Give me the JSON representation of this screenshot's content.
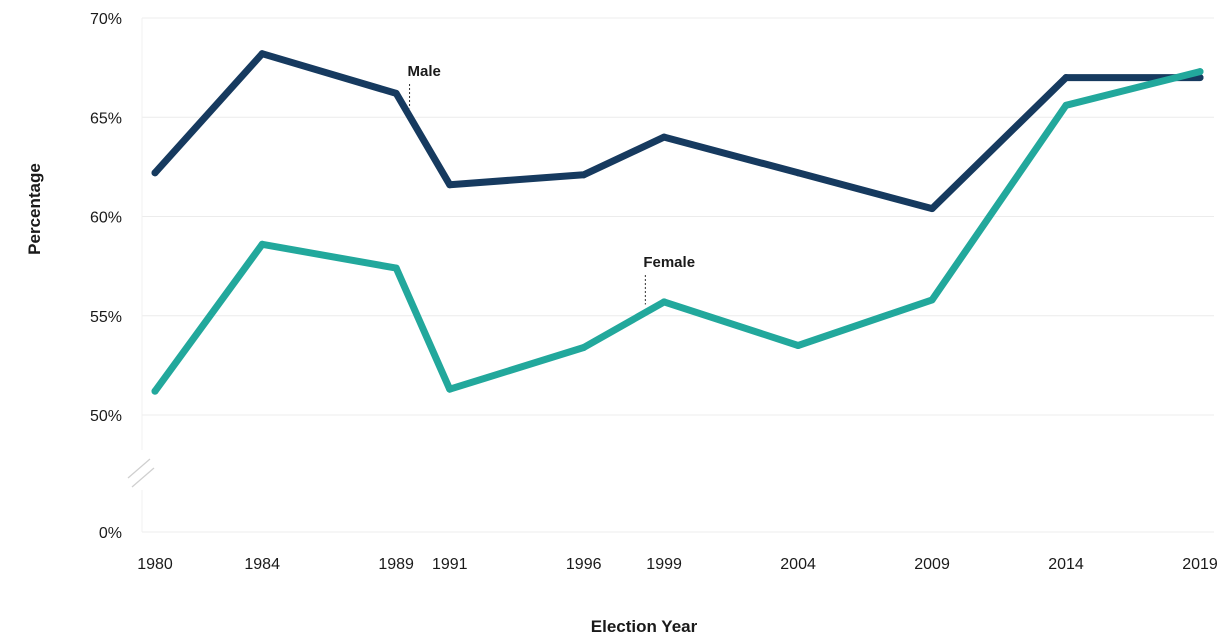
{
  "chart_data": {
    "type": "line",
    "xlabel": "Election Year",
    "ylabel": "Percentage",
    "x": [
      1980,
      1984,
      1989,
      1991,
      1996,
      1999,
      2004,
      2009,
      2014,
      2019
    ],
    "x_tick_labels": [
      "1980",
      "1984",
      "1989",
      "1991",
      "1996",
      "1999",
      "2004",
      "2009",
      "2014",
      "2019"
    ],
    "y_ticks": [
      0,
      50,
      55,
      60,
      65,
      70
    ],
    "y_tick_labels": [
      "0%",
      "50%",
      "55%",
      "60%",
      "65%",
      "70%"
    ],
    "y_axis_break": true,
    "ylim": [
      0,
      70
    ],
    "grid": true,
    "series": [
      {
        "name": "Male",
        "color": "#163a5f",
        "values": [
          62.2,
          68.2,
          66.2,
          61.6,
          62.1,
          64.0,
          62.2,
          60.4,
          67.0,
          67.0
        ]
      },
      {
        "name": "Female",
        "color": "#22a89c",
        "values": [
          51.2,
          58.6,
          57.4,
          51.3,
          53.4,
          55.7,
          53.5,
          55.8,
          65.6,
          67.3
        ]
      }
    ]
  }
}
